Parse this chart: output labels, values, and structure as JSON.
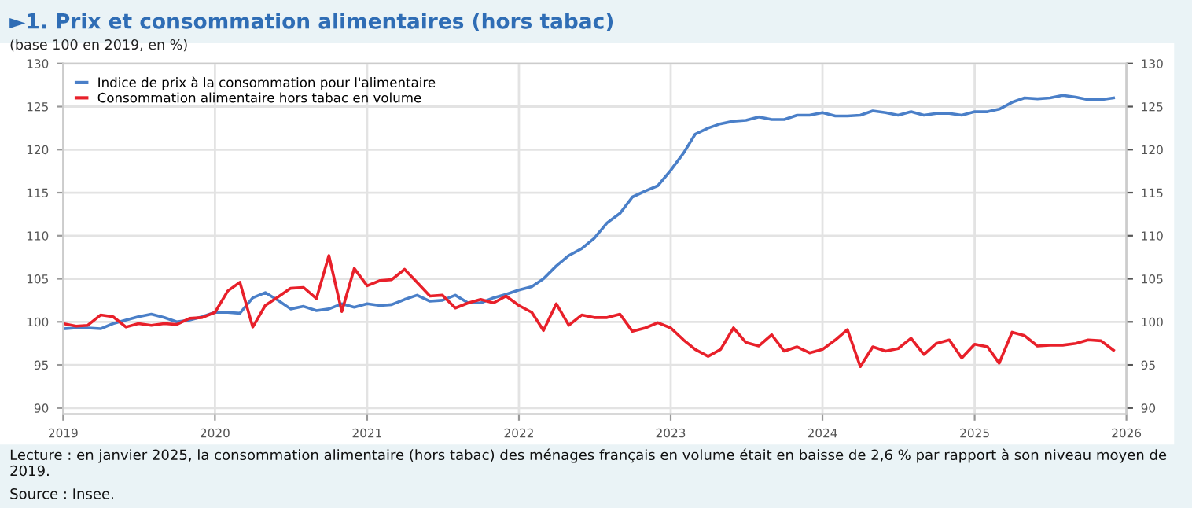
{
  "chart_data": {
    "type": "line",
    "title": "►1. Prix et consommation alimentaires (hors tabac)",
    "subtitle": "(base 100 en 2019, en %)",
    "x": [
      "2019-01",
      "2019-02",
      "2019-03",
      "2019-04",
      "2019-05",
      "2019-06",
      "2019-07",
      "2019-08",
      "2019-09",
      "2019-10",
      "2019-11",
      "2019-12",
      "2020-01",
      "2020-02",
      "2020-03",
      "2020-04",
      "2020-05",
      "2020-06",
      "2020-07",
      "2020-08",
      "2020-09",
      "2020-10",
      "2020-11",
      "2020-12",
      "2021-01",
      "2021-02",
      "2021-03",
      "2021-04",
      "2021-05",
      "2021-06",
      "2021-07",
      "2021-08",
      "2021-09",
      "2021-10",
      "2021-11",
      "2021-12",
      "2022-01",
      "2022-02",
      "2022-03",
      "2022-04",
      "2022-05",
      "2022-06",
      "2022-07",
      "2022-08",
      "2022-09",
      "2022-10",
      "2022-11",
      "2022-12",
      "2023-01",
      "2023-02",
      "2023-03",
      "2023-04",
      "2023-05",
      "2023-06",
      "2023-07",
      "2023-08",
      "2023-09",
      "2023-10",
      "2023-11",
      "2023-12",
      "2024-01",
      "2024-02",
      "2024-03",
      "2024-04",
      "2024-05",
      "2024-06",
      "2024-07",
      "2024-08",
      "2024-09",
      "2024-10",
      "2024-11",
      "2024-12",
      "2025-01",
      "2025-02",
      "2025-03",
      "2025-04",
      "2025-05",
      "2025-06",
      "2025-07",
      "2025-08",
      "2025-09",
      "2025-10",
      "2025-11",
      "2025-12"
    ],
    "series": [
      {
        "name": "Indice de prix à la consommation pour l'alimentaire",
        "color": "#4a7fc8",
        "values": [
          99.2,
          99.3,
          99.3,
          99.2,
          99.8,
          100.2,
          100.6,
          100.9,
          100.5,
          100.0,
          100.2,
          100.6,
          101.1,
          101.1,
          101.0,
          102.8,
          103.4,
          102.5,
          101.5,
          101.8,
          101.3,
          101.5,
          102.1,
          101.7,
          102.1,
          101.9,
          102.0,
          102.6,
          103.1,
          102.4,
          102.5,
          103.1,
          102.2,
          102.2,
          102.8,
          103.2,
          103.7,
          104.1,
          105.0,
          106.5,
          107.7,
          108.5,
          109.7,
          111.5,
          112.6,
          114.5,
          115.2,
          115.8,
          117.6,
          119.6,
          121.8,
          122.5,
          123.0,
          123.3,
          123.4,
          123.8,
          123.5,
          123.5,
          124.0,
          124.0,
          124.3,
          123.9,
          123.9,
          124.0,
          124.5,
          124.3,
          124.0,
          124.4,
          124.0,
          124.2,
          124.2,
          124.0,
          124.4,
          124.4,
          124.7,
          125.5,
          126.0,
          125.9,
          126.0,
          126.3,
          126.1,
          125.8,
          125.8,
          126.0
        ]
      },
      {
        "name": "Consommation alimentaire hors tabac en volume",
        "color": "#e8202a",
        "values": [
          99.8,
          99.5,
          99.6,
          100.8,
          100.6,
          99.4,
          99.8,
          99.6,
          99.8,
          99.7,
          100.4,
          100.5,
          101.1,
          103.6,
          104.6,
          99.4,
          101.9,
          102.9,
          103.9,
          104.0,
          102.7,
          107.7,
          101.2,
          106.2,
          104.2,
          104.8,
          104.9,
          106.1,
          104.6,
          103.0,
          103.1,
          101.6,
          102.2,
          102.6,
          102.2,
          103.0,
          101.9,
          101.1,
          99.0,
          102.1,
          99.6,
          100.8,
          100.5,
          100.5,
          100.9,
          98.9,
          99.3,
          99.9,
          99.3,
          97.9,
          96.8,
          96.0,
          96.8,
          99.3,
          97.6,
          97.2,
          98.5,
          96.6,
          97.1,
          96.4,
          96.8,
          97.9,
          99.1,
          94.8,
          97.1,
          96.6,
          96.9,
          98.1,
          96.2,
          97.5,
          97.9,
          95.8,
          97.4,
          97.1,
          95.2,
          98.8,
          98.4,
          97.2,
          97.3,
          97.3,
          97.5,
          97.9,
          97.8,
          96.7
        ]
      }
    ],
    "xlim": [
      "2019-01",
      "2026-01"
    ],
    "xticks": [
      {
        "value": "2019-01",
        "label": "2019"
      },
      {
        "value": "2020-01",
        "label": "2020"
      },
      {
        "value": "2021-01",
        "label": "2021"
      },
      {
        "value": "2022-01",
        "label": "2022"
      },
      {
        "value": "2023-01",
        "label": "2023"
      },
      {
        "value": "2024-01",
        "label": "2024"
      },
      {
        "value": "2025-01",
        "label": "2025"
      },
      {
        "value": "2026-01",
        "label": "2026"
      }
    ],
    "ylim": [
      89.3,
      130
    ],
    "yticks": [
      90,
      95,
      100,
      105,
      110,
      115,
      120,
      125,
      130
    ],
    "y2lim": [
      89.3,
      130
    ],
    "y2ticks": [
      90,
      95,
      100,
      105,
      110,
      115,
      120,
      125,
      130
    ],
    "grid": true,
    "legend": "top left",
    "marker": "none",
    "line_style": "solid",
    "annotations": [
      "Lecture : en janvier 2025, la consommation alimentaire (hors tabac) des ménages français en volume était en baisse de 2,6 % par rapport à son niveau moyen de 2019.",
      "Source : Insee."
    ]
  }
}
